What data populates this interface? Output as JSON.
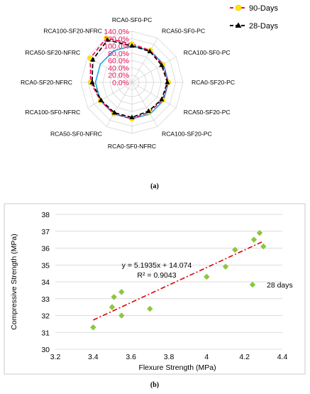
{
  "figure": {
    "caption_a": "(a)",
    "caption_b": "(b)"
  },
  "colors": {
    "series_90": "#e8105a",
    "series_28": "#000000",
    "ref_polygon": "#1ea7e1",
    "marker_90": "#ffe600",
    "marker_28": "#000000",
    "radar_ticks": "#e8105a",
    "scatter_points": "#8dc63f",
    "trend": "#e00000",
    "grid": "#d0d0d0"
  },
  "chart_data": [
    {
      "type": "radar",
      "title": "",
      "axes": [
        "RCA0-SF0-PC",
        "RCA50-SF0-PC",
        "RCA100-SF0-PC",
        "RCA0-SF20-PC",
        "RCA50-SF20-PC",
        "RCA100-SF20-PC",
        "RCA0-SF0-NFRC",
        "RCA50-SF0-NFRC",
        "RCA100-SF0-NFRC",
        "RCA0-SF20-NFRC",
        "RCA50-SF20-NFRC",
        "RCA100-SF20-NFRC"
      ],
      "radial_ticks": [
        "0.0%",
        "20.0%",
        "40.0%",
        "60.0%",
        "80.0%",
        "100.0%",
        "120.0%",
        "140.0%"
      ],
      "rlim": [
        0,
        140
      ],
      "legend_position": "top-right",
      "series": [
        {
          "name": "90-Days",
          "values": [
            105,
            101,
            97,
            100,
            97,
            94,
            100,
            99,
            100,
            113,
            132,
            140
          ]
        },
        {
          "name": "28-Days",
          "values": [
            100,
            98,
            94,
            97,
            94,
            91,
            96,
            96,
            98,
            109,
            124,
            134
          ]
        },
        {
          "values": [
            100,
            100,
            100,
            100,
            100,
            100,
            100,
            100,
            100,
            100,
            100,
            100
          ]
        }
      ]
    },
    {
      "type": "scatter",
      "title": "",
      "xlabel": "Flexure Strength (MPa)",
      "ylabel": "Compressive Strength (MPa)",
      "xlim": [
        3.2,
        4.4
      ],
      "ylim": [
        30,
        38
      ],
      "xticks": [
        "3.2",
        "3.4",
        "3.6",
        "3.8",
        "4",
        "4.2",
        "4.4"
      ],
      "yticks": [
        "30",
        "31",
        "32",
        "33",
        "34",
        "35",
        "36",
        "37",
        "38"
      ],
      "series": [
        {
          "name": "28 days",
          "x": [
            3.4,
            3.5,
            3.51,
            3.55,
            3.55,
            3.7,
            4.0,
            4.1,
            4.15,
            4.25,
            4.28,
            4.3
          ],
          "y": [
            31.3,
            32.5,
            33.1,
            33.4,
            32.0,
            32.4,
            34.3,
            34.9,
            35.9,
            36.5,
            36.9,
            36.1
          ]
        }
      ],
      "trendline": {
        "slope": 5.1935,
        "intercept": 14.074,
        "x_range": [
          3.4,
          4.3
        ],
        "equation": "y = 5.1935x + 14.074",
        "r2": "R² = 0.9043"
      },
      "legend_position": "right"
    }
  ]
}
